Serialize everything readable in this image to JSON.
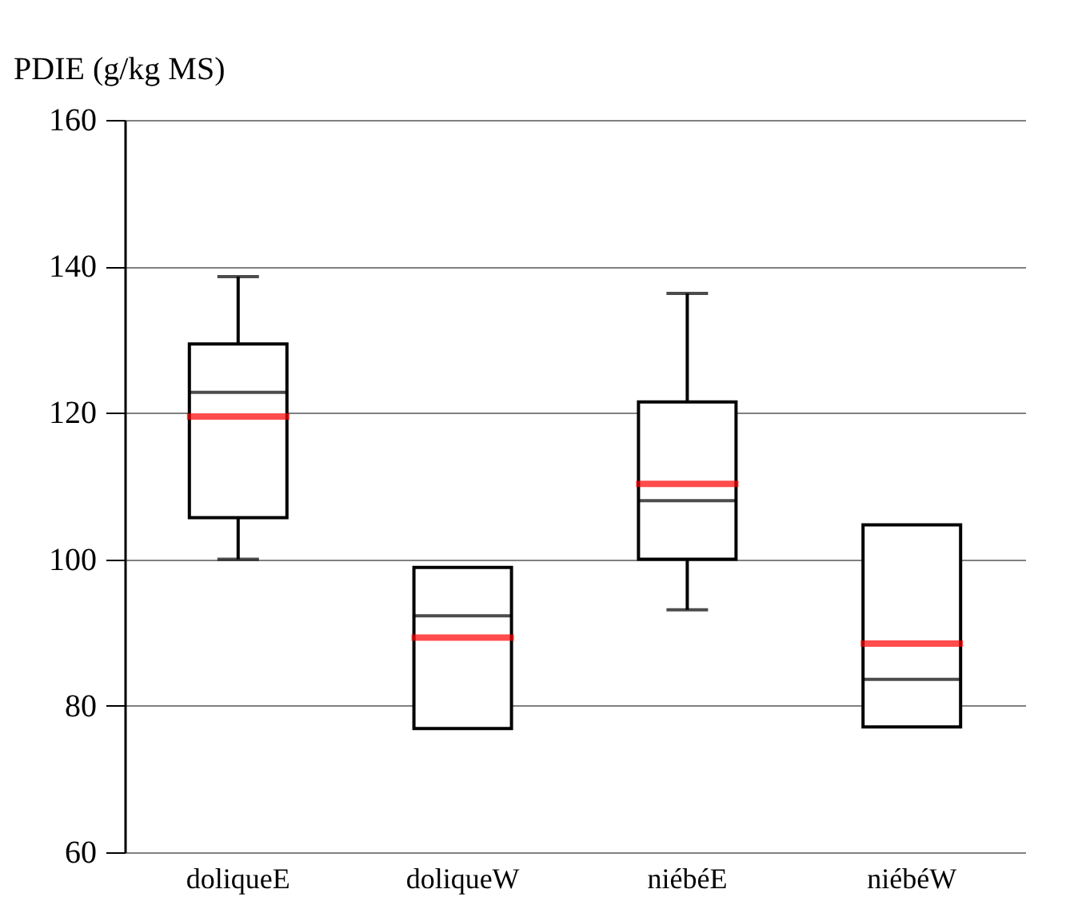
{
  "chart_data": {
    "type": "box",
    "ylabel": "PDIE (g/kg MS)",
    "categories": [
      "doliqueE",
      "doliqueW",
      "niébéE",
      "niébéW"
    ],
    "boxes": [
      {
        "low": 100,
        "q1": 105.7,
        "median": 122.8,
        "q3": 129.4,
        "high": 138.6,
        "mean": 119.5
      },
      {
        "low": 76.9,
        "q1": 76.9,
        "median": 92.3,
        "q3": 98.9,
        "high": 98.9,
        "mean": 89.3
      },
      {
        "low": 93.1,
        "q1": 100,
        "median": 108,
        "q3": 121.5,
        "high": 136.3,
        "mean": 110.3
      },
      {
        "low": 77.1,
        "q1": 77.1,
        "median": 83.6,
        "q3": 104.7,
        "high": 104.7,
        "mean": 88.5
      }
    ],
    "ylim": [
      60,
      160
    ],
    "yticks": [
      60,
      80,
      100,
      120,
      140,
      160
    ],
    "grid": "y"
  }
}
